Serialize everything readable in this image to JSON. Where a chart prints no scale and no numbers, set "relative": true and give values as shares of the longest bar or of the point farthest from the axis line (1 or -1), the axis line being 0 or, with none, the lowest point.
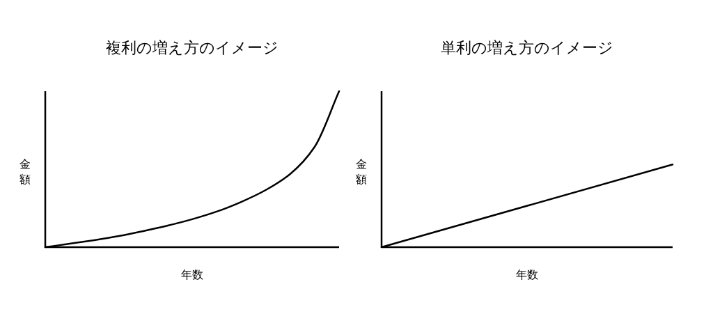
{
  "chart_data": [
    {
      "type": "line",
      "title": "複利の増え方のイメージ",
      "xlabel": "年数",
      "ylabel": "金額",
      "relative": true,
      "categories": [
        null,
        null,
        null,
        null,
        null,
        null,
        null,
        null,
        null,
        null,
        null,
        null,
        null
      ],
      "series": [
        {
          "color": "#000000",
          "values": [
            0,
            0.022,
            0.045,
            0.071,
            0.103,
            0.138,
            0.179,
            0.228,
            0.29,
            0.366,
            0.469,
            0.643,
            1
          ]
        }
      ]
    },
    {
      "type": "line",
      "title": "単利の増え方のイメージ",
      "xlabel": "年数",
      "ylabel": "金額",
      "relative": true,
      "categories": [
        null,
        null
      ],
      "series": [
        {
          "color": "#000000",
          "values": [
            0,
            1
          ]
        }
      ]
    }
  ]
}
